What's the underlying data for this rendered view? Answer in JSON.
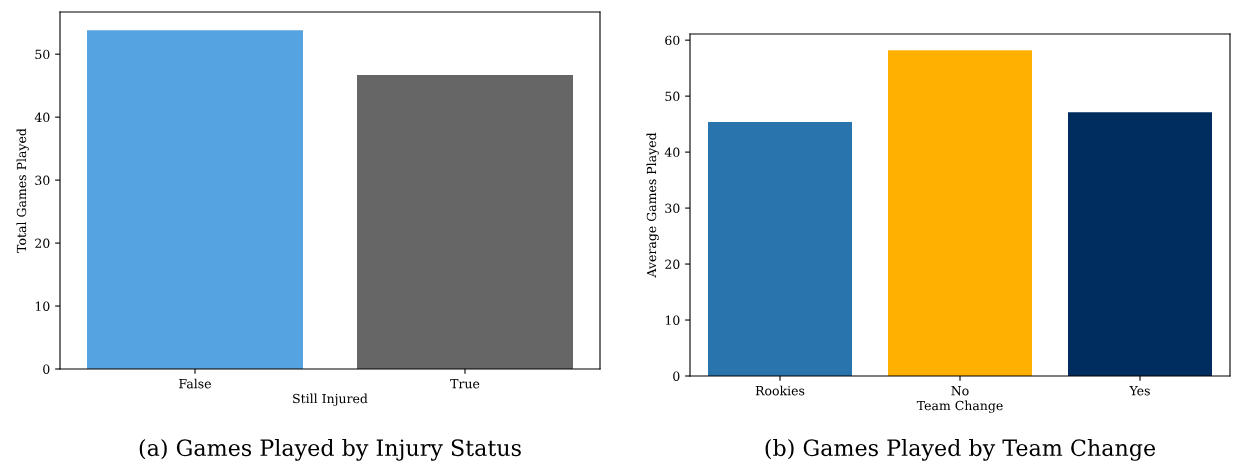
{
  "chart_data": [
    {
      "type": "bar",
      "title": "(a) Games Played by Injury Status",
      "xlabel": "Still Injured",
      "ylabel": "Total Games Played",
      "categories": [
        "False",
        "True"
      ],
      "values": [
        53.8,
        46.7
      ],
      "colors": [
        "#55a3e0",
        "#666666"
      ],
      "ylim": [
        0,
        56.7
      ],
      "yticks": [
        0,
        10,
        20,
        30,
        40,
        50
      ],
      "grid": false,
      "legend": false
    },
    {
      "type": "bar",
      "title": "(b) Games Played by Team Change",
      "xlabel": "Team Change",
      "ylabel": "Average Games Played",
      "categories": [
        "Rookies",
        "No",
        "Yes"
      ],
      "values": [
        45.4,
        58.2,
        47.1
      ],
      "colors": [
        "#2a74ae",
        "#ffb000",
        "#002d5f"
      ],
      "ylim": [
        0,
        61.1
      ],
      "yticks": [
        0,
        10,
        20,
        30,
        40,
        50,
        60
      ],
      "grid": false,
      "legend": false
    }
  ]
}
